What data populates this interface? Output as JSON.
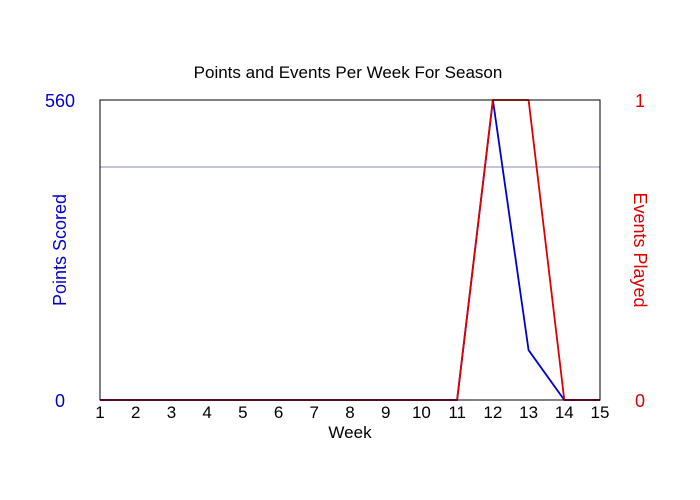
{
  "chart_data": {
    "type": "line",
    "title": "Points and Events Per Week For Season",
    "xlabel": "Week",
    "x": [
      1,
      2,
      3,
      4,
      5,
      6,
      7,
      8,
      9,
      10,
      11,
      12,
      13,
      14,
      15
    ],
    "xlim": [
      1,
      15
    ],
    "grid": "single horizontal line at left-axis value 435",
    "axes": {
      "left": {
        "label": "Points Scored",
        "ylim": [
          0,
          560
        ],
        "ticks": [
          "0",
          "560"
        ],
        "color": "#0000cc"
      },
      "right": {
        "label": "Events Played",
        "ylim": [
          0,
          1
        ],
        "ticks": [
          "0",
          "1"
        ],
        "color": "#dd0000"
      }
    },
    "series": [
      {
        "name": "Points Scored",
        "axis": "left",
        "color": "#0000cc",
        "values": [
          0,
          0,
          0,
          0,
          0,
          0,
          0,
          0,
          0,
          0,
          0,
          560,
          93,
          0,
          0
        ]
      },
      {
        "name": "Events Played",
        "axis": "right",
        "color": "#dd0000",
        "values": [
          0,
          0,
          0,
          0,
          0,
          0,
          0,
          0,
          0,
          0,
          0,
          1,
          1,
          0,
          0
        ]
      }
    ],
    "grid_line_value": 435
  }
}
